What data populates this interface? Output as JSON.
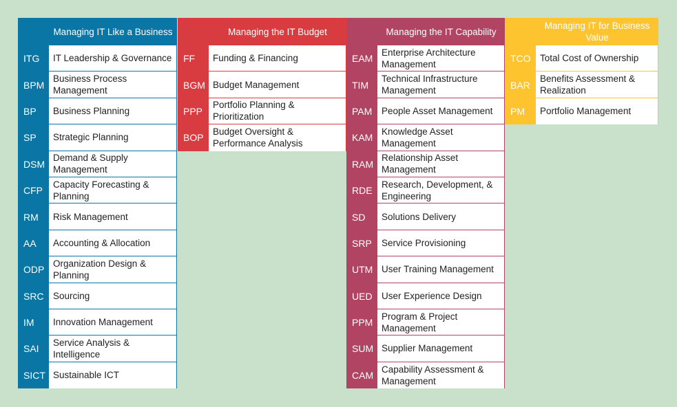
{
  "columns": [
    {
      "title": "Managing IT Like a Business",
      "color": "#0a76a5",
      "rows": [
        {
          "code": "ITG",
          "name": "IT Leadership & Governance"
        },
        {
          "code": "BPM",
          "name": "Business Process Management"
        },
        {
          "code": "BP",
          "name": "Business Planning"
        },
        {
          "code": "SP",
          "name": "Strategic Planning"
        },
        {
          "code": "DSM",
          "name": "Demand & Supply Management"
        },
        {
          "code": "CFP",
          "name": "Capacity Forecasting & Planning"
        },
        {
          "code": "RM",
          "name": "Risk Management"
        },
        {
          "code": "AA",
          "name": "Accounting & Allocation"
        },
        {
          "code": "ODP",
          "name": "Organization Design & Planning"
        },
        {
          "code": "SRC",
          "name": "Sourcing"
        },
        {
          "code": "IM",
          "name": "Innovation Management"
        },
        {
          "code": "SAI",
          "name": "Service Analysis & Intelligence"
        },
        {
          "code": "SICT",
          "name": "Sustainable ICT"
        }
      ]
    },
    {
      "title": "Managing the IT Budget",
      "color": "#d83c40",
      "rows": [
        {
          "code": "FF",
          "name": "Funding & Financing"
        },
        {
          "code": "BGM",
          "name": "Budget Management"
        },
        {
          "code": "PPP",
          "name": "Portfolio Planning & Prioritization"
        },
        {
          "code": "BOP",
          "name": "Budget Oversight & Performance Analysis"
        }
      ]
    },
    {
      "title": "Managing the IT Capability",
      "color": "#b04462",
      "rows": [
        {
          "code": "EAM",
          "name": "Enterprise Architecture Management"
        },
        {
          "code": "TIM",
          "name": "Technical Infrastructure Management"
        },
        {
          "code": "PAM",
          "name": "People Asset Management"
        },
        {
          "code": "KAM",
          "name": "Knowledge Asset Management"
        },
        {
          "code": "RAM",
          "name": "Relationship Asset Management"
        },
        {
          "code": "RDE",
          "name": "Research, Development, & Engineering"
        },
        {
          "code": "SD",
          "name": "Solutions Delivery"
        },
        {
          "code": "SRP",
          "name": "Service Provisioning"
        },
        {
          "code": "UTM",
          "name": "User Training Management"
        },
        {
          "code": "UED",
          "name": "User Experience Design"
        },
        {
          "code": "PPM",
          "name": "Program & Project Management"
        },
        {
          "code": "SUM",
          "name": "Supplier Management"
        },
        {
          "code": "CAM",
          "name": "Capability Assessment & Management"
        }
      ]
    },
    {
      "title": "Managing IT for Business Value",
      "color": "#fdc42f",
      "rows": [
        {
          "code": "TCO",
          "name": "Total Cost of Ownership"
        },
        {
          "code": "BAR",
          "name": "Benefits Assessment & Realization"
        },
        {
          "code": "PM",
          "name": "Portfolio Management"
        }
      ]
    }
  ]
}
